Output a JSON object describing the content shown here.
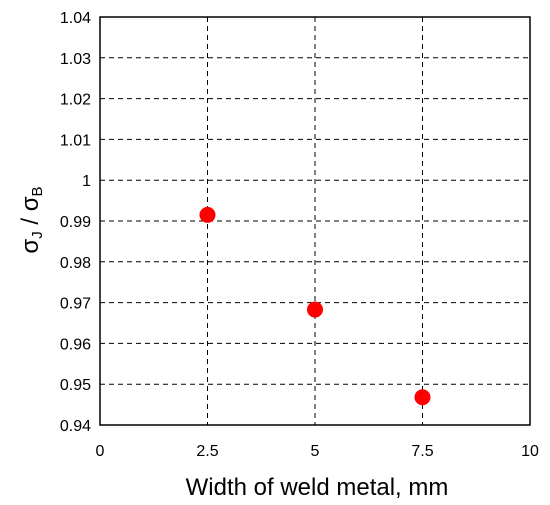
{
  "chart_data": {
    "type": "scatter",
    "title": "",
    "xlabel": "Width of weld metal, mm",
    "ylabel": {
      "base1": "σ",
      "sub1": "J",
      "sep": " / ",
      "base2": "σ",
      "sub2": "B"
    },
    "xlim": [
      0,
      10
    ],
    "ylim": [
      0.94,
      1.04
    ],
    "x_ticks": [
      "0",
      "2.5",
      "5",
      "7.5",
      "10"
    ],
    "y_ticks": [
      "0.94",
      "0.95",
      "0.96",
      "0.97",
      "0.98",
      "0.99",
      "1",
      "1.01",
      "1.02",
      "1.03",
      "1.04"
    ],
    "grid": true,
    "grid_style": "dashed",
    "series": [
      {
        "color": "#ff0000",
        "points": [
          {
            "x": 2.5,
            "y": 0.9915
          },
          {
            "x": 5.0,
            "y": 0.9683
          },
          {
            "x": 7.5,
            "y": 0.9468
          }
        ]
      }
    ]
  }
}
